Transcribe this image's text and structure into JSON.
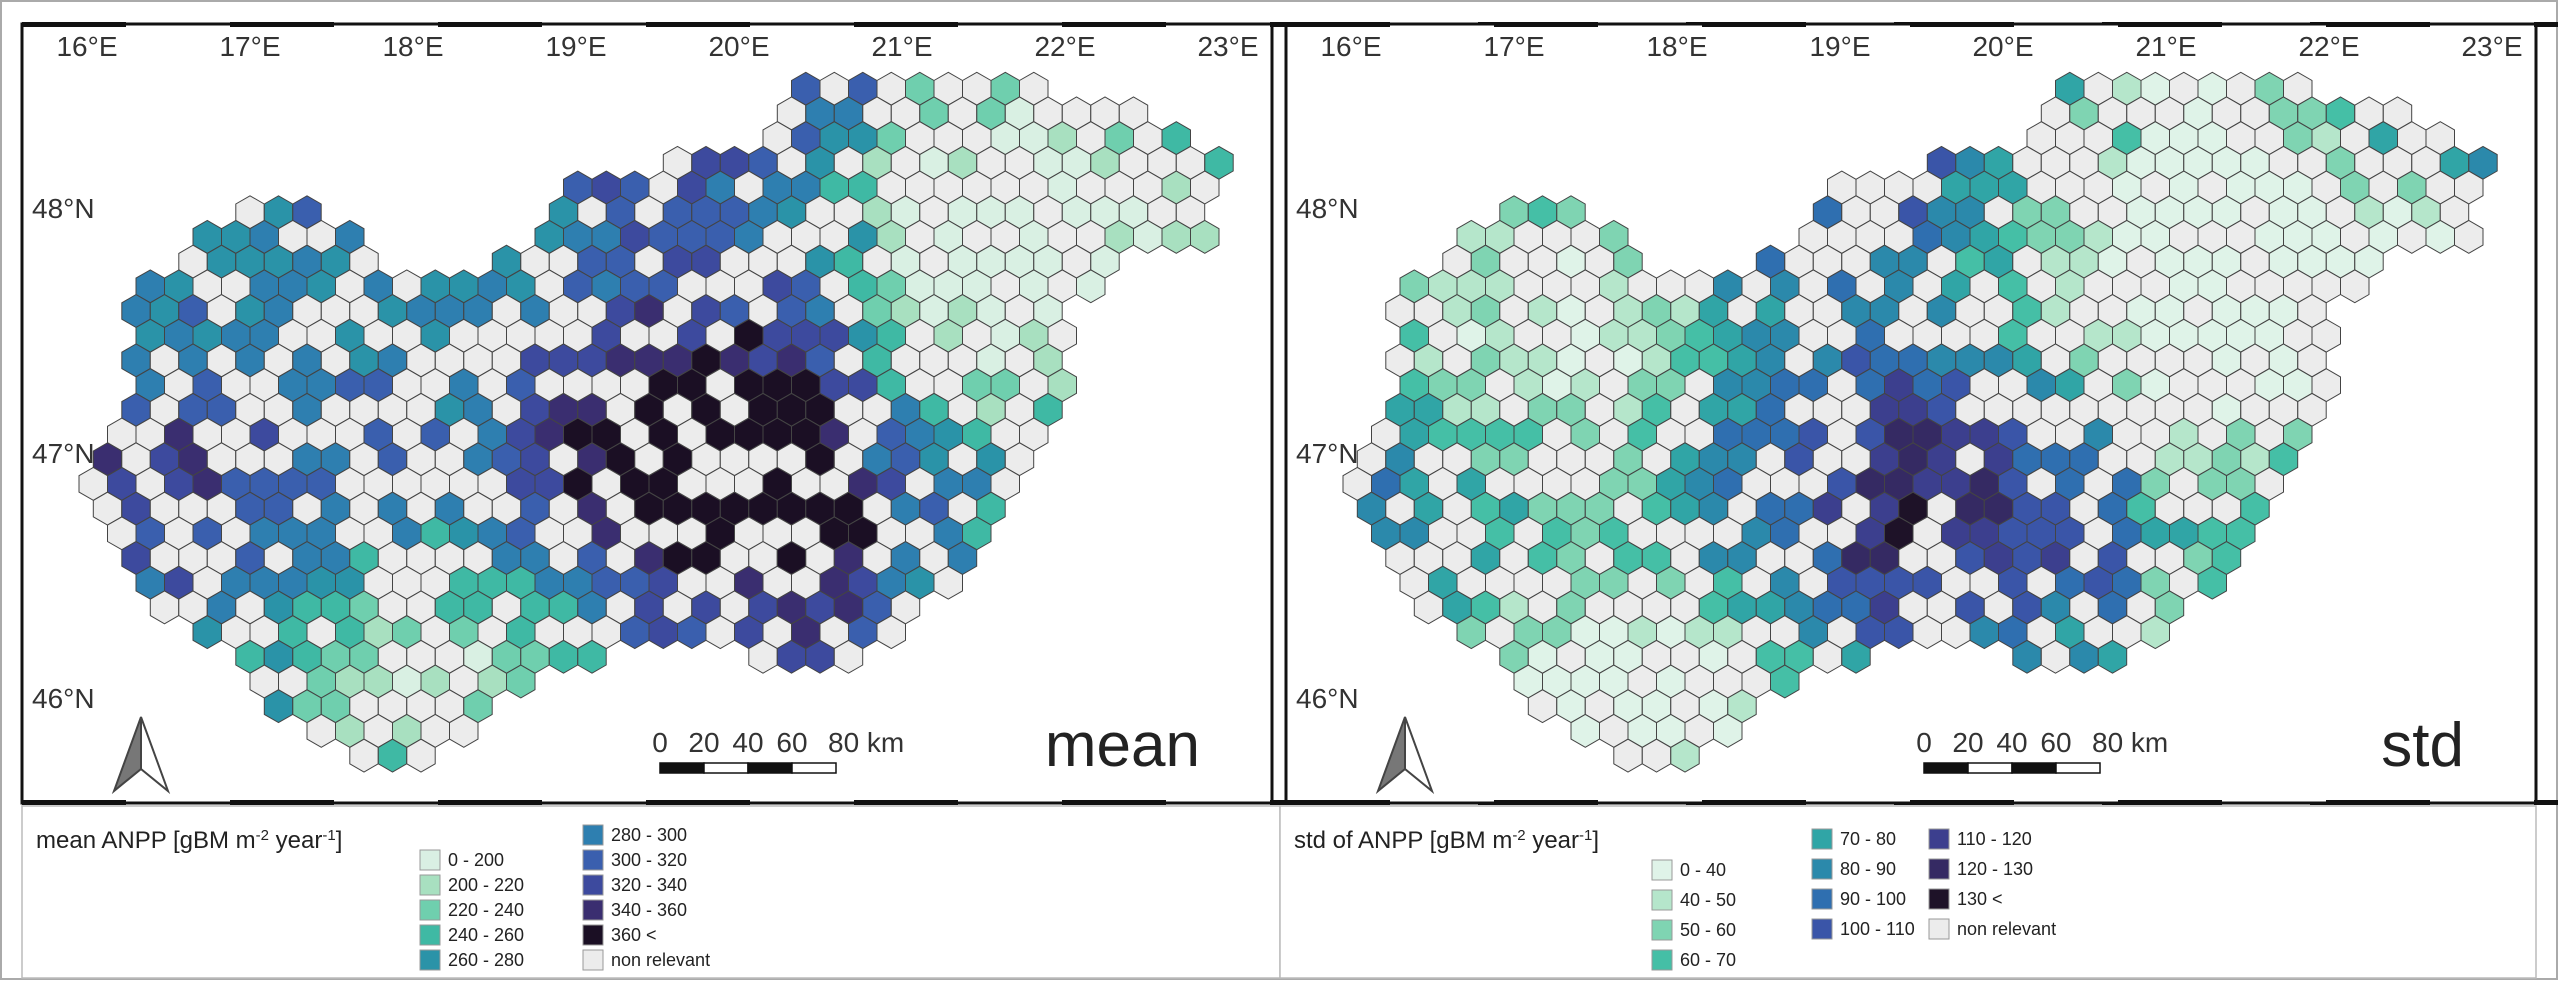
{
  "panels": [
    {
      "label": "mean",
      "lon_labels": [
        "16°E",
        "17°E",
        "18°E",
        "19°E",
        "20°E",
        "21°E",
        "22°E",
        "23°E"
      ],
      "lat_labels": [
        "48°N",
        "47°N",
        "46°N"
      ],
      "scale_labels": [
        "0",
        "20",
        "40",
        "60",
        "80 km"
      ],
      "legend": {
        "title": [
          "mean ANPP [gBM m",
          "-2",
          " year",
          "-1",
          "]"
        ],
        "columns": [
          [
            {
              "label": "0 - 200",
              "color": "#d9f0e3"
            },
            {
              "label": "200 - 220",
              "color": "#a8e0c0"
            },
            {
              "label": "220 - 240",
              "color": "#6fcfae"
            },
            {
              "label": "240 - 260",
              "color": "#3fb9a4"
            },
            {
              "label": "260 - 280",
              "color": "#2a93a8"
            }
          ],
          [
            {
              "label": "280 - 300",
              "color": "#2e7fb0"
            },
            {
              "label": "300 - 320",
              "color": "#3a5fae"
            },
            {
              "label": "320 - 340",
              "color": "#3d4a9e"
            },
            {
              "label": "340 - 360",
              "color": "#3a2e70"
            },
            {
              "label": "360 <",
              "color": "#1b0f24"
            },
            {
              "label": "non relevant",
              "color": "#ececec"
            }
          ]
        ]
      }
    },
    {
      "label": "std",
      "lon_labels": [
        "16°E",
        "17°E",
        "18°E",
        "19°E",
        "20°E",
        "21°E",
        "22°E",
        "23°E"
      ],
      "lat_labels": [
        "48°N",
        "47°N",
        "46°N"
      ],
      "scale_labels": [
        "0",
        "20",
        "40",
        "60",
        "80 km"
      ],
      "legend": {
        "title": [
          "std of ANPP [gBM m",
          "-2",
          " year",
          "-1",
          "]"
        ],
        "columns": [
          [
            {
              "label": "0 - 40",
              "color": "#dff3e8"
            },
            {
              "label": "40 - 50",
              "color": "#b5e6cb"
            },
            {
              "label": "50 - 60",
              "color": "#7fd4b2"
            },
            {
              "label": "60 - 70",
              "color": "#45bfa6"
            }
          ],
          [
            {
              "label": "70 - 80",
              "color": "#30a5a6"
            },
            {
              "label": "80 - 90",
              "color": "#2b89ab"
            },
            {
              "label": "90 - 100",
              "color": "#2f6fb0"
            },
            {
              "label": "100 - 110",
              "color": "#3a55a8"
            }
          ],
          [
            {
              "label": "110 - 120",
              "color": "#3c3f8e"
            },
            {
              "label": "120 - 130",
              "color": "#352a63"
            },
            {
              "label": "130 <",
              "color": "#1e1228"
            },
            {
              "label": "non relevant",
              "color": "#ececec"
            }
          ]
        ]
      }
    }
  ]
}
